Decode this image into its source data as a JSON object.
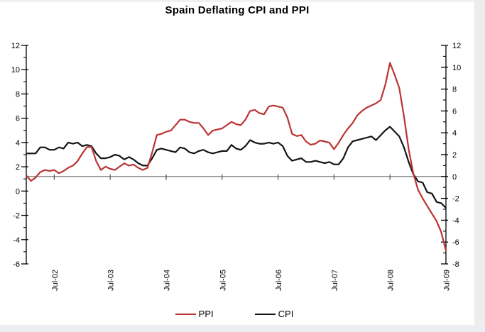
{
  "title": "Spain Deflating CPI and PPI",
  "legend": {
    "items": [
      {
        "label": "PPI",
        "color": "#bd3232"
      },
      {
        "label": "CPI",
        "color": "#141414"
      }
    ]
  },
  "colors": {
    "page_bg": "#ffffff",
    "axis": "#000000",
    "zero_line": "#848484",
    "ppi_line": "#bd3232",
    "cpi_line": "#141414",
    "edge_strip": "#ededed",
    "bottom_strip": "#eceef1"
  },
  "chart_data": {
    "type": "line",
    "title": "Spain Deflating CPI and PPI",
    "grid": "off",
    "legend_position": "bottom",
    "zero_line": true,
    "x_months_span": {
      "first": "Jan-02",
      "last": "Jul-09",
      "count": 91
    },
    "x_tick_labels": [
      "Jul-02",
      "Jul-03",
      "Jul-04",
      "Jul-05",
      "Jul-06",
      "Jul-07",
      "Jul-08",
      "Jul-09"
    ],
    "x_tick_month_indices": [
      6,
      18,
      30,
      42,
      54,
      66,
      78,
      90
    ],
    "left_axis": {
      "min": -6,
      "max": 12,
      "major_tick_step": 2,
      "minor_tick_step": 1,
      "tick_labels": [
        12,
        10,
        8,
        6,
        4,
        2,
        0,
        -2,
        -4,
        -6
      ]
    },
    "right_axis": {
      "min": -8,
      "max": 12,
      "major_tick_step": 2,
      "minor_tick_step": 1,
      "tick_labels": [
        12,
        10,
        8,
        6,
        4,
        2,
        0,
        -2,
        -4,
        -6,
        -8
      ]
    },
    "series": [
      {
        "name": "CPI",
        "axis": "left",
        "color": "#141414",
        "values": [
          3.1,
          3.1,
          3.1,
          3.6,
          3.6,
          3.4,
          3.4,
          3.6,
          3.5,
          4.0,
          3.9,
          4.0,
          3.7,
          3.8,
          3.7,
          3.1,
          2.7,
          2.7,
          2.8,
          3.0,
          2.9,
          2.6,
          2.8,
          2.6,
          2.3,
          2.1,
          2.1,
          2.7,
          3.4,
          3.5,
          3.4,
          3.3,
          3.2,
          3.6,
          3.5,
          3.2,
          3.1,
          3.3,
          3.4,
          3.2,
          3.1,
          3.2,
          3.3,
          3.3,
          3.8,
          3.5,
          3.4,
          3.7,
          4.2,
          4.0,
          3.9,
          3.9,
          4.0,
          3.9,
          4.0,
          3.7,
          2.9,
          2.5,
          2.6,
          2.7,
          2.4,
          2.4,
          2.5,
          2.4,
          2.3,
          2.4,
          2.2,
          2.2,
          2.7,
          3.6,
          4.1,
          4.2,
          4.3,
          4.4,
          4.5,
          4.2,
          4.6,
          5.0,
          5.3,
          4.9,
          4.5,
          3.6,
          2.4,
          1.4,
          0.8,
          0.7,
          -0.1,
          -0.2,
          -0.9,
          -1.0,
          -1.4
        ]
      },
      {
        "name": "PPI",
        "axis": "right",
        "color": "#bd3232",
        "values": [
          0.1,
          -0.4,
          -0.1,
          0.4,
          0.6,
          0.5,
          0.6,
          0.3,
          0.5,
          0.8,
          1.0,
          1.4,
          2.1,
          2.7,
          2.7,
          1.4,
          0.6,
          0.9,
          0.7,
          0.6,
          0.9,
          1.2,
          1.0,
          1.1,
          0.8,
          0.6,
          0.8,
          2.2,
          3.8,
          3.9,
          4.1,
          4.2,
          4.7,
          5.2,
          5.2,
          5.0,
          4.9,
          4.9,
          4.4,
          3.8,
          4.2,
          4.3,
          4.4,
          4.7,
          5.0,
          4.8,
          4.7,
          5.2,
          6.0,
          6.1,
          5.8,
          5.7,
          6.4,
          6.5,
          6.4,
          6.3,
          5.4,
          3.9,
          3.7,
          3.8,
          3.2,
          2.9,
          3.0,
          3.3,
          3.2,
          3.1,
          2.5,
          3.1,
          3.8,
          4.4,
          4.9,
          5.6,
          6.0,
          6.3,
          6.5,
          6.7,
          7.0,
          8.4,
          10.4,
          9.3,
          8.1,
          5.5,
          2.5,
          0.3,
          -1.2,
          -2.0,
          -2.7,
          -3.4,
          -4.1,
          -5.1,
          -6.8
        ]
      }
    ]
  }
}
